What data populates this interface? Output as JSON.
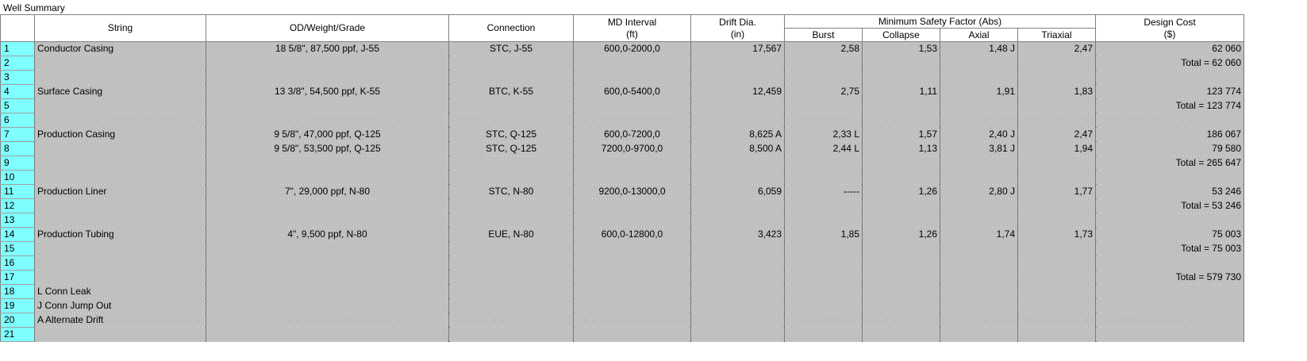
{
  "title": "Well Summary",
  "header": {
    "string": "String",
    "od": "OD/Weight/Grade",
    "connection": "Connection",
    "md_interval": "MD Interval",
    "md_unit": "(ft)",
    "drift": "Drift Dia.",
    "drift_unit": "(in)",
    "msf": "Minimum Safety Factor (Abs)",
    "burst": "Burst",
    "collapse": "Collapse",
    "axial": "Axial",
    "triaxial": "Triaxial",
    "cost": "Design Cost",
    "cost_unit": "($)"
  },
  "rows": [
    {
      "n": "1",
      "string": "Conductor Casing",
      "od": "18 5/8\", 87,500 ppf, J-55",
      "conn": "STC, J-55",
      "md": "600,0-2000,0",
      "drift": "17,567",
      "burst": "2,58",
      "collapse": "1,53",
      "axial": "1,48 J",
      "triaxial": "2,47",
      "cost": "62 060"
    },
    {
      "n": "2",
      "string": "",
      "od": "",
      "conn": "",
      "md": "",
      "drift": "",
      "burst": "",
      "collapse": "",
      "axial": "",
      "triaxial": "",
      "cost": "Total = 62 060"
    },
    {
      "n": "3",
      "string": "",
      "od": "",
      "conn": "",
      "md": "",
      "drift": "",
      "burst": "",
      "collapse": "",
      "axial": "",
      "triaxial": "",
      "cost": ""
    },
    {
      "n": "4",
      "string": "Surface Casing",
      "od": "13 3/8\", 54,500 ppf, K-55",
      "conn": "BTC, K-55",
      "md": "600,0-5400,0",
      "drift": "12,459",
      "burst": "2,75",
      "collapse": "1,11",
      "axial": "1,91",
      "triaxial": "1,83",
      "cost": "123 774"
    },
    {
      "n": "5",
      "string": "",
      "od": "",
      "conn": "",
      "md": "",
      "drift": "",
      "burst": "",
      "collapse": "",
      "axial": "",
      "triaxial": "",
      "cost": "Total = 123 774"
    },
    {
      "n": "6",
      "string": "",
      "od": "",
      "conn": "",
      "md": "",
      "drift": "",
      "burst": "",
      "collapse": "",
      "axial": "",
      "triaxial": "",
      "cost": ""
    },
    {
      "n": "7",
      "string": "Production Casing",
      "od": "9 5/8\", 47,000 ppf, Q-125",
      "conn": "STC, Q-125",
      "md": "600,0-7200,0",
      "drift": "8,625 A",
      "burst": "2,33 L",
      "collapse": "1,57",
      "axial": "2,40 J",
      "triaxial": "2,47",
      "cost": "186 067"
    },
    {
      "n": "8",
      "string": "",
      "od": "9 5/8\", 53,500 ppf, Q-125",
      "conn": "STC, Q-125",
      "md": "7200,0-9700,0",
      "drift": "8,500 A",
      "burst": "2,44 L",
      "collapse": "1,13",
      "axial": "3,81 J",
      "triaxial": "1,94",
      "cost": "79 580"
    },
    {
      "n": "9",
      "string": "",
      "od": "",
      "conn": "",
      "md": "",
      "drift": "",
      "burst": "",
      "collapse": "",
      "axial": "",
      "triaxial": "",
      "cost": "Total = 265 647"
    },
    {
      "n": "10",
      "string": "",
      "od": "",
      "conn": "",
      "md": "",
      "drift": "",
      "burst": "",
      "collapse": "",
      "axial": "",
      "triaxial": "",
      "cost": ""
    },
    {
      "n": "11",
      "string": "Production Liner",
      "od": "7\", 29,000 ppf, N-80",
      "conn": "STC, N-80",
      "md": "9200,0-13000,0",
      "drift": "6,059",
      "burst": "-----",
      "collapse": "1,26",
      "axial": "2,80 J",
      "triaxial": "1,77",
      "cost": "53 246"
    },
    {
      "n": "12",
      "string": "",
      "od": "",
      "conn": "",
      "md": "",
      "drift": "",
      "burst": "",
      "collapse": "",
      "axial": "",
      "triaxial": "",
      "cost": "Total = 53 246"
    },
    {
      "n": "13",
      "string": "",
      "od": "",
      "conn": "",
      "md": "",
      "drift": "",
      "burst": "",
      "collapse": "",
      "axial": "",
      "triaxial": "",
      "cost": ""
    },
    {
      "n": "14",
      "string": "Production Tubing",
      "od": "4\", 9,500 ppf, N-80",
      "conn": "EUE, N-80",
      "md": "600,0-12800,0",
      "drift": "3,423",
      "burst": "1,85",
      "collapse": "1,26",
      "axial": "1,74",
      "triaxial": "1,73",
      "cost": "75 003"
    },
    {
      "n": "15",
      "string": "",
      "od": "",
      "conn": "",
      "md": "",
      "drift": "",
      "burst": "",
      "collapse": "",
      "axial": "",
      "triaxial": "",
      "cost": "Total = 75 003"
    },
    {
      "n": "16",
      "string": "",
      "od": "",
      "conn": "",
      "md": "",
      "drift": "",
      "burst": "",
      "collapse": "",
      "axial": "",
      "triaxial": "",
      "cost": ""
    },
    {
      "n": "17",
      "string": "",
      "od": "",
      "conn": "",
      "md": "",
      "drift": "",
      "burst": "",
      "collapse": "",
      "axial": "",
      "triaxial": "",
      "cost": "Total = 579 730"
    },
    {
      "n": "18",
      "string": "L Conn Leak",
      "od": "",
      "conn": "",
      "md": "",
      "drift": "",
      "burst": "",
      "collapse": "",
      "axial": "",
      "triaxial": "",
      "cost": ""
    },
    {
      "n": "19",
      "string": "J Conn Jump Out",
      "od": "",
      "conn": "",
      "md": "",
      "drift": "",
      "burst": "",
      "collapse": "",
      "axial": "",
      "triaxial": "",
      "cost": ""
    },
    {
      "n": "20",
      "string": "A Alternate Drift",
      "od": "",
      "conn": "",
      "md": "",
      "drift": "",
      "burst": "",
      "collapse": "",
      "axial": "",
      "triaxial": "",
      "cost": ""
    },
    {
      "n": "21",
      "string": "",
      "od": "",
      "conn": "",
      "md": "",
      "drift": "",
      "burst": "",
      "collapse": "",
      "axial": "",
      "triaxial": "",
      "cost": ""
    }
  ]
}
